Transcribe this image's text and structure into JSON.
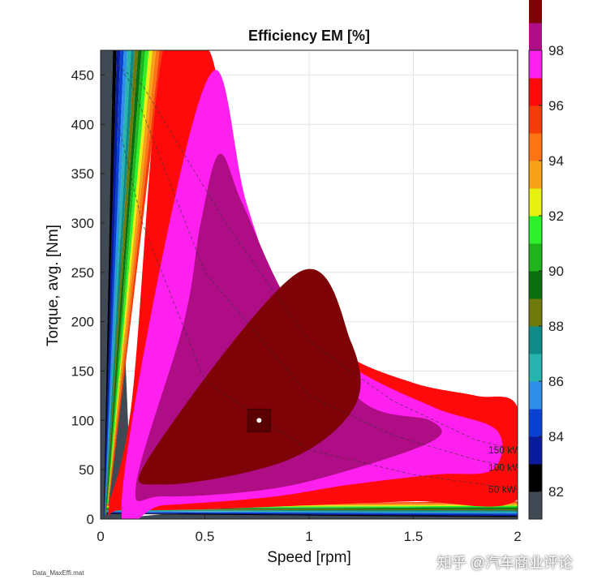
{
  "chart_data": {
    "type": "heatmap",
    "title": "Efficiency EM [%]",
    "xlabel": "Speed [rpm]",
    "ylabel": "Torque, avg. [Nm]",
    "xlim": [
      0,
      2
    ],
    "ylim": [
      0,
      475
    ],
    "x_ticks": [
      "0",
      "0.5",
      "1",
      "1.5",
      "2"
    ],
    "y_ticks": [
      "0",
      "50",
      "100",
      "150",
      "200",
      "250",
      "300",
      "350",
      "400",
      "450"
    ],
    "grid": true,
    "colorbar": {
      "range": [
        81,
        98
      ],
      "tick_labels": [
        "82",
        "84",
        "86",
        "88",
        "90",
        "92",
        "94",
        "96",
        "98"
      ],
      "colors": [
        "#3f4a55",
        "#000000",
        "#0a1b9b",
        "#0a41d2",
        "#2e8ee8",
        "#27b3ae",
        "#0f8c88",
        "#6e7b0b",
        "#0a6e0f",
        "#1fb41b",
        "#2ef02a",
        "#e8f00f",
        "#f6a318",
        "#ff7412",
        "#f43d0b",
        "#ff0a0a",
        "#ff20f0",
        "#ae0d86",
        "#7f0206"
      ]
    },
    "efficiency_regions": [
      {
        "level": "97-98",
        "color": "#7f0206",
        "polygon": [
          [
            0.95,
            250
          ],
          [
            1.2,
            180
          ],
          [
            1.22,
            115
          ],
          [
            0.9,
            60
          ],
          [
            0.3,
            35
          ],
          [
            0.24,
            65
          ]
        ]
      },
      {
        "level": "96-97",
        "color": "#ae0d86",
        "polygon": [
          [
            0.57,
            370
          ],
          [
            0.68,
            320
          ],
          [
            0.9,
            220
          ],
          [
            1.25,
            120
          ],
          [
            1.58,
            100
          ],
          [
            1.6,
            80
          ],
          [
            1.2,
            50
          ],
          [
            0.8,
            30
          ],
          [
            0.3,
            23
          ],
          [
            0.17,
            35
          ],
          [
            0.4,
            200
          ],
          [
            0.48,
            300
          ]
        ]
      },
      {
        "level": "95-96",
        "color": "#ff20f0",
        "polygon": [
          [
            0.55,
            455
          ],
          [
            0.7,
            320
          ],
          [
            0.9,
            215
          ],
          [
            1.2,
            155
          ],
          [
            1.6,
            113
          ],
          [
            1.9,
            90
          ],
          [
            1.88,
            50
          ],
          [
            1.6,
            45
          ],
          [
            1.2,
            35
          ],
          [
            0.8,
            22
          ],
          [
            0.3,
            14
          ],
          [
            0.1,
            13
          ],
          [
            0.33,
            300
          ]
        ]
      },
      {
        "level": "94-95",
        "color": "#ff0a0a",
        "polygon": [
          [
            0.52,
            475
          ],
          [
            0.63,
            350
          ],
          [
            0.85,
            235
          ],
          [
            1.15,
            170
          ],
          [
            1.5,
            138
          ],
          [
            1.8,
            125
          ],
          [
            2.0,
            113
          ],
          [
            2.0,
            20
          ],
          [
            1.5,
            18
          ],
          [
            1.0,
            14
          ],
          [
            0.5,
            10
          ],
          [
            0.1,
            9
          ],
          [
            0.04,
            12
          ],
          [
            0.15,
            120
          ],
          [
            0.3,
            475
          ]
        ]
      }
    ],
    "power_lines": [
      {
        "label": "150 kW",
        "color": "#333333",
        "points": [
          [
            0.08,
            460
          ],
          [
            0.2,
            440
          ],
          [
            0.6,
            300
          ],
          [
            1.0,
            180
          ],
          [
            1.4,
            120
          ],
          [
            1.8,
            80
          ],
          [
            2.0,
            70
          ]
        ]
      },
      {
        "label": "100 kW",
        "color": "#333333",
        "points": [
          [
            0.05,
            470
          ],
          [
            0.15,
            440
          ],
          [
            0.5,
            250
          ],
          [
            1.0,
            125
          ],
          [
            1.4,
            85
          ],
          [
            1.8,
            60
          ],
          [
            2.0,
            52
          ]
        ]
      },
      {
        "label": "50 kW",
        "color": "#333333",
        "points": [
          [
            0.05,
            430
          ],
          [
            0.2,
            300
          ],
          [
            0.5,
            140
          ],
          [
            1.0,
            70
          ],
          [
            1.5,
            45
          ],
          [
            2.0,
            30
          ]
        ]
      }
    ],
    "operating_point": {
      "x": 0.76,
      "y": 100
    }
  },
  "file_label": "Data_MaxEffi.mat",
  "watermark": "知乎 @汽车商业评论"
}
